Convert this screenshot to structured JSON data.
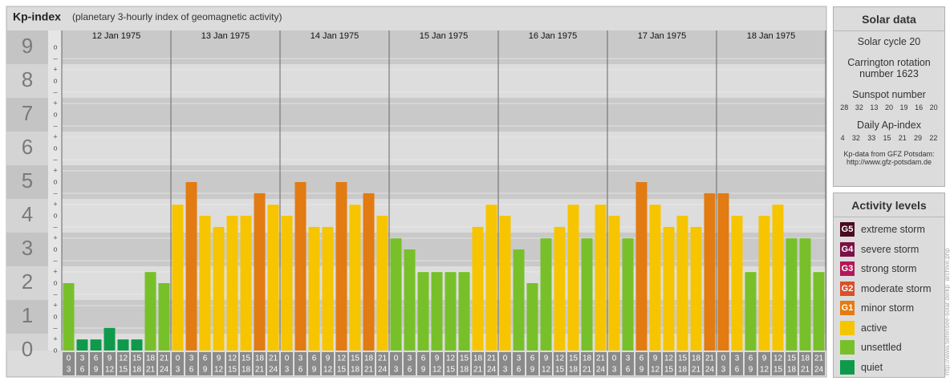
{
  "chart_data": {
    "type": "bar",
    "title": "Kp-index",
    "subtitle": "(planetary 3-hourly index of geomagnetic activity)",
    "days": [
      "12 Jan 1975",
      "13 Jan 1975",
      "14 Jan 1975",
      "15 Jan 1975",
      "16 Jan 1975",
      "17 Jan 1975",
      "18 Jan 1975"
    ],
    "hours": [
      "0",
      "3",
      "6",
      "9",
      "12",
      "15",
      "18",
      "21",
      "24"
    ],
    "values": [
      2,
      0.33,
      0.33,
      0.67,
      0.33,
      0.33,
      2.33,
      2,
      4.33,
      5,
      4,
      3.67,
      4,
      4,
      4.67,
      4.33,
      4,
      5,
      3.67,
      3.67,
      5,
      4.33,
      4.67,
      4,
      3.33,
      3,
      2.33,
      2.33,
      2.33,
      2.33,
      3.67,
      4.33,
      4,
      3,
      2,
      3.33,
      3.67,
      4.33,
      3.33,
      4.33,
      4,
      3.33,
      5,
      4.33,
      3.67,
      4,
      3.67,
      4.67,
      4.67,
      4,
      2.33,
      4,
      4.33,
      3.33,
      3.33,
      2.33
    ],
    "colors": [
      "#78c02a",
      "#0f9a4b",
      "#0f9a4b",
      "#0f9a4b",
      "#0f9a4b",
      "#0f9a4b",
      "#78c02a",
      "#78c02a",
      "#f6c500",
      "#e27b12",
      "#f6c500",
      "#f6c500",
      "#f6c500",
      "#f6c500",
      "#e27b12",
      "#f6c500",
      "#f6c500",
      "#e27b12",
      "#f6c500",
      "#f6c500",
      "#e27b12",
      "#f6c500",
      "#e27b12",
      "#f6c500",
      "#78c02a",
      "#78c02a",
      "#78c02a",
      "#78c02a",
      "#78c02a",
      "#78c02a",
      "#f6c500",
      "#f6c500",
      "#f6c500",
      "#78c02a",
      "#78c02a",
      "#78c02a",
      "#f6c500",
      "#f6c500",
      "#78c02a",
      "#f6c500",
      "#f6c500",
      "#78c02a",
      "#e27b12",
      "#f6c500",
      "#f6c500",
      "#f6c500",
      "#f6c500",
      "#e27b12",
      "#e27b12",
      "#f6c500",
      "#78c02a",
      "#f6c500",
      "#f6c500",
      "#78c02a",
      "#78c02a",
      "#78c02a"
    ],
    "ylim": [
      0,
      9.5
    ],
    "yticks": [
      0,
      1,
      2,
      3,
      4,
      5,
      6,
      7,
      8,
      9
    ],
    "subtick_labels": [
      "–",
      "o",
      "+"
    ],
    "grid": true
  },
  "solar_data": {
    "title": "Solar data",
    "cycle": "Solar cycle 20",
    "rotation": "Carrington rotation number 1623",
    "sunspot_title": "Sunspot number",
    "sunspots": [
      28,
      32,
      13,
      20,
      19,
      16,
      20
    ],
    "ap_title": "Daily Ap-index",
    "ap": [
      4,
      32,
      33,
      15,
      21,
      29,
      22
    ],
    "source": "Kp-data from GFZ Potsdam:",
    "url": "http://www.gfz-potsdam.de"
  },
  "activity_levels": {
    "title": "Activity levels",
    "levels": [
      {
        "badge": "G5",
        "label": "extreme storm",
        "color": "#4a0a1e"
      },
      {
        "badge": "G4",
        "label": "severe storm",
        "color": "#7c0f45"
      },
      {
        "badge": "G3",
        "label": "strong storm",
        "color": "#b3165a"
      },
      {
        "badge": "G2",
        "label": "moderate storm",
        "color": "#d9502a"
      },
      {
        "badge": "G1",
        "label": "minor storm",
        "color": "#e27b12"
      },
      {
        "label": "active",
        "color": "#f6c500"
      },
      {
        "label": "unsettled",
        "color": "#78c02a"
      },
      {
        "label": "quiet",
        "color": "#0f9a4b"
      }
    ]
  },
  "watermark": "http://www.tiefensee-solar.de/kp_archive.php"
}
